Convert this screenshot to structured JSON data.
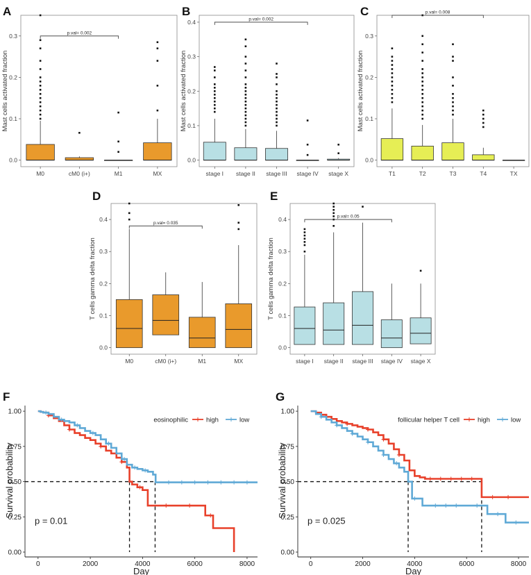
{
  "figure": {
    "colors": {
      "orange": "#e99a2c",
      "lightblue": "#b8dfe4",
      "yellow": "#e6ee55",
      "km_high": "#e8402a",
      "km_low": "#5fa9d6",
      "frame": "#8a8a8a",
      "text": "#333333"
    }
  },
  "chart_data": [
    {
      "panel": "A",
      "type": "boxplot",
      "ylabel": "Mast cells activated  fraction",
      "ylim": [
        0,
        0.35
      ],
      "yticks": [
        0.0,
        0.1,
        0.2,
        0.3
      ],
      "ytick_labels": [
        "0.0",
        "0.1",
        "0.2",
        "0.3"
      ],
      "categories": [
        "M0",
        "cM0 (i+)",
        "M1",
        "MX"
      ],
      "boxes": [
        {
          "q1": 0,
          "median": 0,
          "q3": 0.038,
          "whisk_hi": 0.095,
          "outliers": [
            0.1,
            0.11,
            0.12,
            0.13,
            0.14,
            0.15,
            0.16,
            0.17,
            0.18,
            0.19,
            0.2,
            0.22,
            0.24,
            0.27,
            0.29,
            0.35
          ]
        },
        {
          "q1": 0,
          "median": 0,
          "q3": 0.006,
          "whisk_hi": 0.009,
          "outliers": [
            0.066
          ]
        },
        {
          "q1": 0,
          "median": 0,
          "q3": 0,
          "whisk_hi": 0,
          "outliers": [
            0.02,
            0.045,
            0.115
          ]
        },
        {
          "q1": 0,
          "median": 0,
          "q3": 0.042,
          "whisk_hi": 0.1,
          "outliers": [
            0.12,
            0.18,
            0.24,
            0.27,
            0.285
          ]
        }
      ],
      "color": "orange",
      "pval": {
        "text": "p.val= 0.002",
        "from": 0,
        "to": 2,
        "y": 0.3
      }
    },
    {
      "panel": "B",
      "type": "boxplot",
      "ylabel": "Mast cells activated  fraction",
      "ylim": [
        0,
        0.42
      ],
      "yticks": [
        0.0,
        0.1,
        0.2,
        0.3,
        0.4
      ],
      "ytick_labels": [
        "0.0",
        "0.1",
        "0.2",
        "0.3",
        "0.4"
      ],
      "categories": [
        "stage I",
        "stage II",
        "stage III",
        "stage IV",
        "stage X"
      ],
      "boxes": [
        {
          "q1": 0,
          "median": 0,
          "q3": 0.052,
          "whisk_hi": 0.12,
          "outliers": [
            0.14,
            0.15,
            0.16,
            0.17,
            0.18,
            0.19,
            0.2,
            0.21,
            0.22,
            0.24,
            0.26,
            0.27
          ]
        },
        {
          "q1": 0,
          "median": 0,
          "q3": 0.036,
          "whisk_hi": 0.09,
          "outliers": [
            0.1,
            0.11,
            0.12,
            0.13,
            0.14,
            0.15,
            0.16,
            0.17,
            0.18,
            0.19,
            0.2,
            0.21,
            0.22,
            0.24,
            0.26,
            0.28,
            0.3,
            0.33,
            0.35
          ]
        },
        {
          "q1": 0,
          "median": 0,
          "q3": 0.034,
          "whisk_hi": 0.085,
          "outliers": [
            0.1,
            0.11,
            0.12,
            0.13,
            0.14,
            0.15,
            0.16,
            0.17,
            0.18,
            0.19,
            0.2,
            0.22,
            0.24,
            0.25,
            0.28
          ]
        },
        {
          "q1": 0,
          "median": 0,
          "q3": 0,
          "whisk_hi": 0,
          "outliers": [
            0.015,
            0.045,
            0.115
          ]
        },
        {
          "q1": 0,
          "median": 0,
          "q3": 0.003,
          "whisk_hi": 0.006,
          "outliers": [
            0.02,
            0.045
          ]
        }
      ],
      "color": "lightblue",
      "pval": {
        "text": "p.val= 0.002",
        "from": 0,
        "to": 3,
        "y": 0.4
      }
    },
    {
      "panel": "C",
      "type": "boxplot",
      "ylabel": "Mast cells activated  fraction",
      "ylim": [
        0,
        0.35
      ],
      "yticks": [
        0.0,
        0.1,
        0.2,
        0.3
      ],
      "ytick_labels": [
        "0.0",
        "0.1",
        "0.2",
        "0.3"
      ],
      "categories": [
        "T1",
        "T2",
        "T3",
        "T4",
        "TX"
      ],
      "boxes": [
        {
          "q1": 0,
          "median": 0,
          "q3": 0.052,
          "whisk_hi": 0.125,
          "outliers": [
            0.14,
            0.15,
            0.16,
            0.17,
            0.18,
            0.19,
            0.2,
            0.21,
            0.22,
            0.23,
            0.24,
            0.25,
            0.27
          ]
        },
        {
          "q1": 0,
          "median": 0,
          "q3": 0.034,
          "whisk_hi": 0.085,
          "outliers": [
            0.1,
            0.11,
            0.12,
            0.13,
            0.14,
            0.15,
            0.16,
            0.17,
            0.18,
            0.19,
            0.2,
            0.21,
            0.22,
            0.24,
            0.26,
            0.28,
            0.3,
            0.35
          ]
        },
        {
          "q1": 0,
          "median": 0,
          "q3": 0.042,
          "whisk_hi": 0.1,
          "outliers": [
            0.11,
            0.12,
            0.13,
            0.14,
            0.15,
            0.16,
            0.18,
            0.2,
            0.24,
            0.25,
            0.28
          ]
        },
        {
          "q1": 0,
          "median": 0,
          "q3": 0.013,
          "whisk_hi": 0.03,
          "outliers": [
            0.08,
            0.09,
            0.1,
            0.11,
            0.12
          ]
        },
        {
          "q1": 0,
          "median": 0,
          "q3": 0,
          "whisk_hi": 0,
          "outliers": []
        }
      ],
      "color": "yellow",
      "pval": {
        "text": "p.val= 0.008",
        "from": 0,
        "to": 3,
        "y": 0.35
      }
    },
    {
      "panel": "D",
      "type": "boxplot",
      "ylabel": "T cells gamma delta  fraction",
      "ylim": [
        0,
        0.45
      ],
      "yticks": [
        0.0,
        0.1,
        0.2,
        0.3,
        0.4
      ],
      "ytick_labels": [
        "0.0",
        "0.1",
        "0.2",
        "0.3",
        "0.4"
      ],
      "categories": [
        "M0",
        "cM0 (i+)",
        "M1",
        "MX"
      ],
      "boxes": [
        {
          "q1": 0,
          "median": 0.06,
          "q3": 0.15,
          "whisk_hi": 0.37,
          "outliers": [
            0.4,
            0.42,
            0.45
          ]
        },
        {
          "q1": 0.04,
          "median": 0.085,
          "q3": 0.165,
          "whisk_hi": 0.235,
          "outliers": []
        },
        {
          "q1": 0,
          "median": 0.03,
          "q3": 0.095,
          "whisk_hi": 0.205,
          "outliers": []
        },
        {
          "q1": 0,
          "median": 0.057,
          "q3": 0.137,
          "whisk_hi": 0.32,
          "outliers": [
            0.37,
            0.39,
            0.445
          ]
        }
      ],
      "color": "orange",
      "pval": {
        "text": "p.val= 0.035",
        "from": 0,
        "to": 2,
        "y": 0.38
      }
    },
    {
      "panel": "E",
      "type": "boxplot",
      "ylabel": "T cells gamma delta  fraction",
      "ylim": [
        0,
        0.45
      ],
      "yticks": [
        0.0,
        0.1,
        0.2,
        0.3,
        0.4
      ],
      "ytick_labels": [
        "0.0",
        "0.1",
        "0.2",
        "0.3",
        "0.4"
      ],
      "categories": [
        "stage I",
        "stage II",
        "stage III",
        "stage IV",
        "stage X"
      ],
      "boxes": [
        {
          "q1": 0.01,
          "median": 0.06,
          "q3": 0.127,
          "whisk_hi": 0.29,
          "outliers": [
            0.3,
            0.32,
            0.33,
            0.34,
            0.35,
            0.36,
            0.37
          ]
        },
        {
          "q1": 0.01,
          "median": 0.055,
          "q3": 0.14,
          "whisk_hi": 0.36,
          "outliers": [
            0.38,
            0.4,
            0.41,
            0.42,
            0.43,
            0.44,
            0.45
          ]
        },
        {
          "q1": 0.01,
          "median": 0.07,
          "q3": 0.175,
          "whisk_hi": 0.39,
          "outliers": [
            0.44
          ]
        },
        {
          "q1": 0,
          "median": 0.03,
          "q3": 0.087,
          "whisk_hi": 0.2,
          "outliers": []
        },
        {
          "q1": 0.012,
          "median": 0.045,
          "q3": 0.093,
          "whisk_hi": 0.2,
          "outliers": [
            0.24
          ]
        }
      ],
      "color": "lightblue",
      "pval": {
        "text": "p.val= 0.05",
        "from": 0,
        "to": 3,
        "y": 0.4
      }
    },
    {
      "panel": "F",
      "type": "line",
      "subtype": "kaplan-meier",
      "xlabel": "Day",
      "ylabel": "Survival probability",
      "xlim": [
        -500,
        8400
      ],
      "ylim": [
        0,
        1.04
      ],
      "xticks": [
        0,
        2000,
        4000,
        6000,
        8000
      ],
      "xtick_labels": [
        "0",
        "2000",
        "4000",
        "6000",
        "8000"
      ],
      "yticks": [
        0,
        0.25,
        0.5,
        0.75,
        1.0
      ],
      "ytick_labels": [
        "0.00",
        "0.25",
        "0.50",
        "0.75",
        "1.00"
      ],
      "legend": {
        "title": "eosinophilic",
        "position": "top-right"
      },
      "pvalue": "p = 0.01",
      "median_lines": [
        3500,
        4480
      ],
      "series": [
        {
          "name": "high",
          "color": "km_high",
          "x": [
            0,
            100,
            200,
            400,
            600,
            800,
            1000,
            1200,
            1400,
            1600,
            1800,
            2000,
            2200,
            2400,
            2600,
            2800,
            3000,
            3200,
            3400,
            3500,
            3600,
            3800,
            4000,
            4200,
            5200,
            6400,
            6700,
            7500,
            7500
          ],
          "y": [
            1.0,
            0.995,
            0.99,
            0.97,
            0.95,
            0.93,
            0.9,
            0.87,
            0.845,
            0.83,
            0.81,
            0.795,
            0.77,
            0.75,
            0.72,
            0.7,
            0.67,
            0.64,
            0.6,
            0.5,
            0.48,
            0.46,
            0.44,
            0.33,
            0.33,
            0.26,
            0.17,
            0.17,
            0.0
          ],
          "censor_x": [
            400,
            1200,
            2400,
            3200,
            3900,
            4900,
            5800,
            6600
          ]
        },
        {
          "name": "low",
          "color": "km_low",
          "x": [
            0,
            100,
            200,
            400,
            600,
            800,
            1000,
            1200,
            1400,
            1600,
            1800,
            2000,
            2200,
            2400,
            2600,
            2800,
            3000,
            3200,
            3400,
            3600,
            3800,
            4000,
            4200,
            4400,
            4500,
            8400
          ],
          "y": [
            1.0,
            0.995,
            0.99,
            0.98,
            0.96,
            0.94,
            0.93,
            0.92,
            0.9,
            0.88,
            0.86,
            0.845,
            0.83,
            0.8,
            0.77,
            0.74,
            0.7,
            0.66,
            0.62,
            0.6,
            0.59,
            0.58,
            0.57,
            0.55,
            0.495,
            0.495
          ],
          "censor_x": [
            300,
            900,
            1500,
            2100,
            2700,
            3300,
            3700,
            4100,
            5000,
            5500,
            6000,
            6500,
            7000,
            7500,
            8000
          ]
        }
      ]
    },
    {
      "panel": "G",
      "type": "line",
      "subtype": "kaplan-meier",
      "xlabel": "Day",
      "ylabel": "Survival probability",
      "xlim": [
        -500,
        8400
      ],
      "ylim": [
        0,
        1.04
      ],
      "xticks": [
        0,
        2000,
        4000,
        6000,
        8000
      ],
      "xtick_labels": [
        "0",
        "2000",
        "4000",
        "6000",
        "8000"
      ],
      "yticks": [
        0,
        0.25,
        0.5,
        0.75,
        1.0
      ],
      "ytick_labels": [
        "0.00",
        "0.25",
        "0.50",
        "0.75",
        "1.00"
      ],
      "legend": {
        "title": "follicular helper T cell",
        "position": "top-right"
      },
      "pvalue": "p = 0.025",
      "median_lines": [
        3750,
        6580
      ],
      "series": [
        {
          "name": "high",
          "color": "km_high",
          "x": [
            0,
            200,
            400,
            600,
            800,
            1000,
            1200,
            1400,
            1600,
            1800,
            2000,
            2200,
            2400,
            2600,
            2800,
            3000,
            3200,
            3400,
            3600,
            3800,
            4000,
            4200,
            4400,
            6580,
            6580,
            8400
          ],
          "y": [
            1.0,
            0.99,
            0.975,
            0.96,
            0.945,
            0.93,
            0.92,
            0.91,
            0.9,
            0.89,
            0.88,
            0.87,
            0.85,
            0.83,
            0.8,
            0.77,
            0.73,
            0.69,
            0.65,
            0.58,
            0.54,
            0.53,
            0.52,
            0.52,
            0.39,
            0.39
          ],
          "censor_x": [
            600,
            1400,
            2200,
            2800,
            3400,
            4600,
            5000,
            5400,
            5800,
            6200,
            7000,
            7600
          ]
        },
        {
          "name": "low",
          "color": "km_low",
          "x": [
            0,
            200,
            400,
            600,
            800,
            1000,
            1200,
            1400,
            1600,
            1800,
            2000,
            2200,
            2400,
            2600,
            2800,
            3000,
            3200,
            3400,
            3600,
            3750,
            3900,
            4300,
            6100,
            6800,
            7500,
            8400
          ],
          "y": [
            1.0,
            0.98,
            0.96,
            0.94,
            0.92,
            0.9,
            0.88,
            0.86,
            0.84,
            0.82,
            0.8,
            0.78,
            0.75,
            0.72,
            0.69,
            0.66,
            0.63,
            0.6,
            0.57,
            0.5,
            0.38,
            0.33,
            0.33,
            0.27,
            0.21,
            0.21
          ],
          "censor_x": [
            400,
            1000,
            1600,
            2200,
            2800,
            3300,
            4000,
            4800,
            5200,
            5600,
            6400,
            7200,
            7900
          ]
        }
      ]
    }
  ]
}
